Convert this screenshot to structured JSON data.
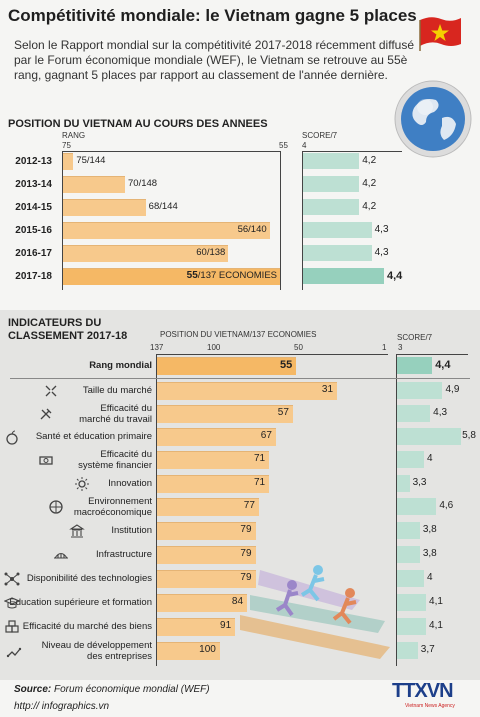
{
  "header": {
    "title": "Compétitivité mondiale: le Vietnam gagne 5 places",
    "intro": "Selon le Rapport mondial sur la compétitivité 2017-2018 récemment diffusé par le Forum économique mondiale (WEF), le Vietnam se retrouve au 55è rang, gagnant 5 places par rapport au classement de l'année dernière."
  },
  "section1": {
    "title": "POSITION DU VIETNAM AU COURS DES ANNEES",
    "rank_label": "RANG",
    "score_label": "SCORE/7"
  },
  "section2": {
    "title_line1": "INDICATEURS DU",
    "title_line2": "CLASSEMENT 2017-18",
    "rank_label": "POSITION DU VIETNAM/137 ECONOMIES",
    "score_label": "SCORE/7"
  },
  "footer": {
    "source_label": "Source:",
    "source_text": "Forum économique mondial (WEF)",
    "website": "http:// infographics.vn",
    "logo": "TTXVN",
    "logo_sub": "Vietnam News Agency"
  },
  "colors": {
    "bar": "#f7c98c",
    "bar_highlight": "#f5b865",
    "score_bar": "#bde0d3",
    "score_highlight": "#96d0bd"
  },
  "chart_data": [
    {
      "type": "bar",
      "title": "POSITION DU VIETNAM AU COURS DES ANNEES",
      "xlabel": "RANG",
      "xlim": [
        75,
        55
      ],
      "x_ticks": [
        "75",
        "55"
      ],
      "categories": [
        "2012-13",
        "2013-14",
        "2014-15",
        "2015-16",
        "2016-17",
        "2017-18"
      ],
      "rank": [
        75,
        70,
        68,
        56,
        60,
        55
      ],
      "total": [
        144,
        148,
        144,
        140,
        138,
        137
      ],
      "value_labels": [
        "75/144",
        "70/148",
        "68/144",
        "56/140",
        "60/138",
        "55/137 ECONOMIES"
      ],
      "score_label": "SCORE/7",
      "score_lim": [
        4,
        4.4
      ],
      "score_ticks": [
        "4"
      ],
      "score": [
        4.2,
        4.2,
        4.2,
        4.3,
        4.3,
        4.4
      ],
      "score_labels": [
        "4,2",
        "4,2",
        "4,2",
        "4,3",
        "4,3",
        "4,4"
      ]
    },
    {
      "type": "bar",
      "title": "INDICATEURS DU CLASSEMENT 2017-18",
      "xlabel": "POSITION DU VIETNAM/137 ECONOMIES",
      "xlim": [
        137,
        1
      ],
      "x_ticks": [
        "137",
        "100",
        "50",
        "1"
      ],
      "categories": [
        "Rang mondial",
        "Taille du marché",
        "Efficacité du marché du travail",
        "Santé et éducation primaire",
        "Efficacité du système financier",
        "Innovation",
        "Environnement macroéconomique",
        "Institution",
        "Infrastructure",
        "Disponibilité des technologies",
        "Education supérieure et formation",
        "Efficacité du marché des biens",
        "Niveau de développement des entreprises"
      ],
      "label_lines": [
        [
          "Rang mondial"
        ],
        [
          "Taille du marché"
        ],
        [
          "Efficacité du",
          "marché du travail"
        ],
        [
          "Santé et éducation primaire"
        ],
        [
          "Efficacité du",
          "système financier"
        ],
        [
          "Innovation"
        ],
        [
          "Environnement",
          "macroéconomique"
        ],
        [
          "Institution"
        ],
        [
          "Infrastructure"
        ],
        [
          "Disponibilité des technologies"
        ],
        [
          "Education supérieure et formation"
        ],
        [
          "Efficacité du marché des biens"
        ],
        [
          "Niveau de développement",
          "des entreprises"
        ]
      ],
      "values": [
        55,
        31,
        57,
        67,
        71,
        71,
        77,
        79,
        79,
        79,
        84,
        91,
        100
      ],
      "score_label": "SCORE/7",
      "score_lim": [
        3,
        5.8
      ],
      "score_ticks": [
        "3"
      ],
      "score": [
        4.4,
        4.9,
        4.3,
        5.8,
        4,
        3.3,
        4.6,
        3.8,
        3.8,
        4,
        4.1,
        4.1,
        3.7
      ],
      "score_labels": [
        "4,4",
        "4,9",
        "4,3",
        "5,8",
        "4",
        "3,3",
        "4,6",
        "3,8",
        "3,8",
        "4",
        "4,1",
        "4,1",
        "3,7"
      ],
      "icons": [
        "",
        "arrows-icon",
        "tools-icon",
        "apple-icon",
        "money-icon",
        "bulb-icon",
        "globe-small-icon",
        "building-icon",
        "bridge-icon",
        "network-icon",
        "graduation-icon",
        "boxes-icon",
        "growth-icon"
      ]
    }
  ]
}
